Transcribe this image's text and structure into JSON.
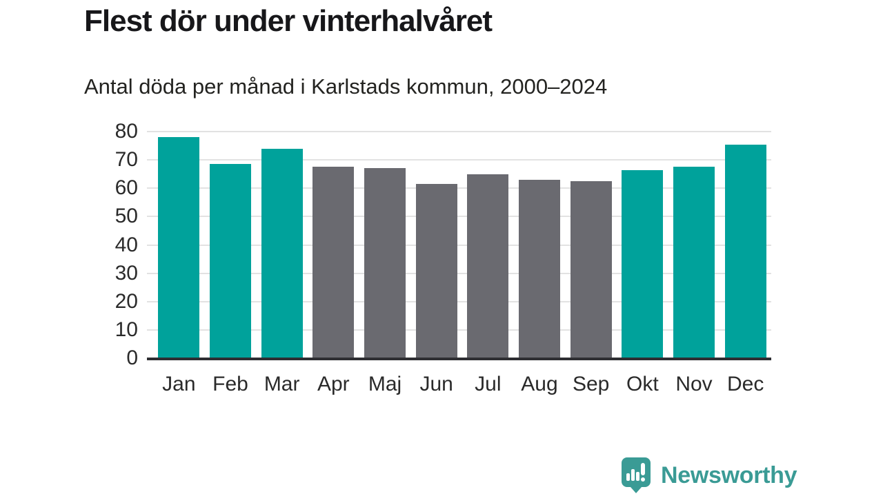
{
  "chart_data": {
    "type": "bar",
    "title": "Flest dör under vinterhalvåret",
    "subtitle": "Antal döda per månad i Karlstads kommun, 2000–2024",
    "categories": [
      "Jan",
      "Feb",
      "Mar",
      "Apr",
      "Maj",
      "Jun",
      "Jul",
      "Aug",
      "Sep",
      "Okt",
      "Nov",
      "Dec"
    ],
    "values": [
      78,
      68.5,
      74,
      67.5,
      67,
      61.5,
      65,
      63,
      62.5,
      66.5,
      67.5,
      75.5
    ],
    "highlighted": [
      true,
      true,
      true,
      false,
      false,
      false,
      false,
      false,
      false,
      true,
      true,
      true
    ],
    "xlabel": "",
    "ylabel": "",
    "ylim": [
      0,
      80
    ],
    "yticks": [
      0,
      10,
      20,
      30,
      40,
      50,
      60,
      70,
      80
    ],
    "grid": "horizontal",
    "legend": "none",
    "colors": {
      "highlight": "#00A29B",
      "muted": "#6A6A70",
      "gridline": "#E2E2E2",
      "axis_line": "#2E2E32",
      "tick_label": "#2A2A2A"
    }
  },
  "branding": {
    "logo_text": "Newsworthy",
    "logo_color": "#3A9B95",
    "logo_icon": "speech-bubble-bar-chart-icon"
  }
}
